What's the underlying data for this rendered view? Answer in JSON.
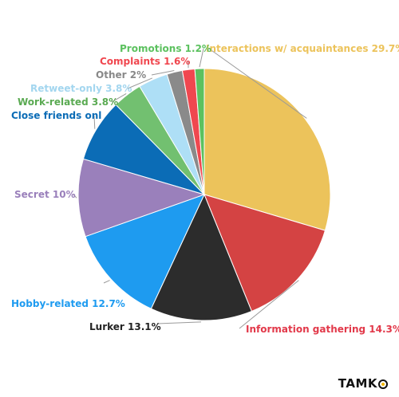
{
  "chart_data": {
    "type": "pie",
    "title": "",
    "slices": [
      {
        "label": "Interactions w/ acquaintances 29.7%",
        "value": 29.7,
        "color": "#ecc35b"
      },
      {
        "label": "Information gathering 14.3%",
        "value": 14.3,
        "color": "#d44343"
      },
      {
        "label": "Lurker 13.1%",
        "value": 13.1,
        "color": "#2c2c2c"
      },
      {
        "label": "Hobby-related 12.7%",
        "value": 12.7,
        "color": "#1e9bf0"
      },
      {
        "label": "Secret 10%",
        "value": 10.0,
        "color": "#9a80bb"
      },
      {
        "label": "Close friends onl",
        "value": 8.1,
        "color": "#0b6cb6"
      },
      {
        "label": "Work-related 3.8%",
        "value": 3.8,
        "color": "#72c070"
      },
      {
        "label": "Retweet-only 3.8%",
        "value": 3.8,
        "color": "#aedff6"
      },
      {
        "label": "Other 2%",
        "value": 2.0,
        "color": "#8a8a8a"
      },
      {
        "label": "Complaints 1.6%",
        "value": 1.6,
        "color": "#f0474f"
      },
      {
        "label": "Promotions 1.2%",
        "value": 1.2,
        "color": "#5cc15f"
      }
    ],
    "label_colors": [
      "#ecc35b",
      "#e2394a",
      "#222222",
      "#1e9bf0",
      "#9a80bb",
      "#0b6cb6",
      "#5aaa52",
      "#a3d6ef",
      "#888888",
      "#f0474f",
      "#5cc15f"
    ]
  },
  "watermark": {
    "text_before": "TAMK",
    "icon": "ring-logo-icon"
  }
}
